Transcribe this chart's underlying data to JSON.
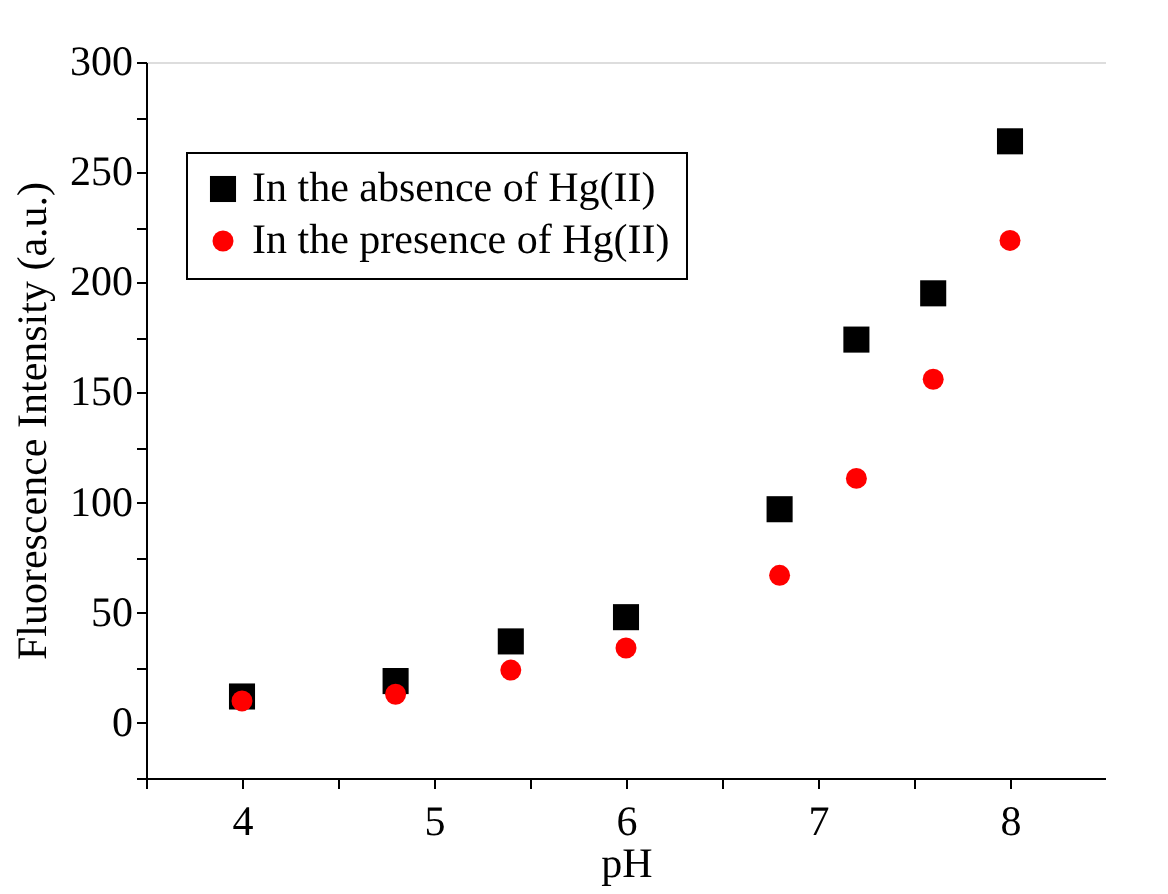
{
  "chart_data": {
    "type": "scatter",
    "xlabel": "pH",
    "ylabel": "Fluorescence Intensity (a.u.)",
    "x": [
      4,
      4.8,
      5.4,
      6,
      6.8,
      7.2,
      7.6,
      8
    ],
    "series": [
      {
        "name": "In the absence of Hg(II)",
        "color": "#000000",
        "marker": "square",
        "values": [
          12,
          19,
          37,
          48,
          97,
          174,
          195,
          264
        ]
      },
      {
        "name": "In the presence of Hg(II)",
        "color": "#ff0000",
        "marker": "circle",
        "values": [
          10,
          13,
          24,
          34,
          67,
          111,
          156,
          219
        ]
      }
    ],
    "xlim": [
      3.5,
      8.5
    ],
    "xticks": [
      {
        "value": 3.5,
        "label": null
      },
      4,
      {
        "value": 4.5,
        "label": null
      },
      5,
      {
        "value": 5.5,
        "label": null
      },
      6,
      {
        "value": 6.5,
        "label": null
      },
      7,
      {
        "value": 7.5,
        "label": null
      },
      8
    ],
    "ylim": [
      -25,
      300
    ],
    "yticks": [
      {
        "value": -25,
        "label": null
      },
      0,
      {
        "value": 25,
        "label": null
      },
      50,
      {
        "value": 75,
        "label": null
      },
      100,
      {
        "value": 125,
        "label": null
      },
      150,
      {
        "value": 175,
        "label": null
      },
      200,
      {
        "value": 225,
        "label": null
      },
      250,
      {
        "value": 275,
        "label": null
      },
      300
    ],
    "grid": false,
    "legend": "top left"
  }
}
